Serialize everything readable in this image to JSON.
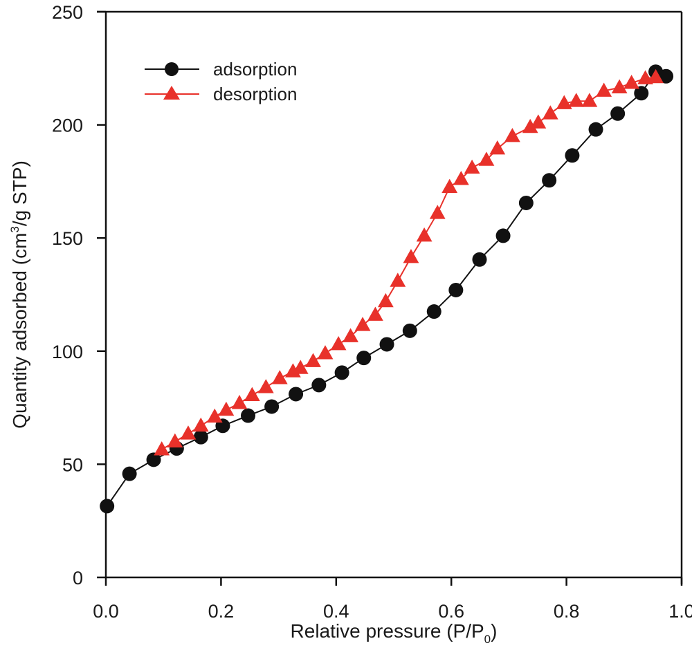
{
  "chart_data": {
    "type": "line",
    "title": "",
    "xlabel": "Relative pressure (P/P",
    "xlabel_sub": "0",
    "xlabel_end": ")",
    "ylabel": "Quantity adsorbed (cm",
    "ylabel_sup": "3",
    "ylabel_end": "/g STP)",
    "xlim": [
      0,
      1.0
    ],
    "ylim": [
      0,
      250
    ],
    "xticks": [
      0.0,
      0.2,
      0.4,
      0.6,
      0.8,
      1.0
    ],
    "xtick_labels": [
      "0.0",
      "0.2",
      "0.4",
      "0.6",
      "0.8",
      "1.0"
    ],
    "yticks": [
      0,
      50,
      100,
      150,
      200,
      250
    ],
    "ytick_labels": [
      "0",
      "50",
      "100",
      "150",
      "200",
      "250"
    ],
    "grid": false,
    "legend_position": "top-left",
    "series": [
      {
        "name": "adsorption",
        "marker": "circle",
        "color": "#111111",
        "x": [
          0.002,
          0.041,
          0.083,
          0.123,
          0.165,
          0.203,
          0.247,
          0.288,
          0.33,
          0.37,
          0.41,
          0.448,
          0.488,
          0.528,
          0.57,
          0.608,
          0.649,
          0.69,
          0.73,
          0.77,
          0.81,
          0.851,
          0.889,
          0.93,
          0.955,
          0.973
        ],
        "y": [
          31.5,
          45.8,
          52,
          57,
          62,
          67,
          71.5,
          75.5,
          81,
          85,
          90.5,
          97,
          103,
          109,
          117.5,
          127,
          140.5,
          151,
          165.5,
          175.5,
          186.5,
          198,
          205,
          214,
          223.5,
          221.5
        ]
      },
      {
        "name": "desorption",
        "marker": "triangle",
        "color": "#e8312a",
        "x": [
          0.097,
          0.12,
          0.143,
          0.165,
          0.189,
          0.209,
          0.232,
          0.254,
          0.278,
          0.302,
          0.325,
          0.338,
          0.36,
          0.381,
          0.404,
          0.425,
          0.446,
          0.468,
          0.486,
          0.507,
          0.53,
          0.553,
          0.576,
          0.597,
          0.617,
          0.636,
          0.661,
          0.68,
          0.706,
          0.737,
          0.751,
          0.772,
          0.796,
          0.817,
          0.84,
          0.865,
          0.892,
          0.913,
          0.937,
          0.955
        ],
        "y": [
          56.5,
          60,
          63.5,
          67,
          71,
          74,
          77,
          80.5,
          84,
          88,
          91,
          92.5,
          95.5,
          99,
          103,
          106.5,
          111.5,
          116,
          122,
          131,
          141.5,
          151,
          161,
          172.5,
          176,
          181,
          184.5,
          189.5,
          195,
          199,
          201,
          205,
          209.5,
          210.5,
          210.5,
          215,
          216.5,
          218.5,
          220.5,
          221
        ]
      }
    ]
  }
}
